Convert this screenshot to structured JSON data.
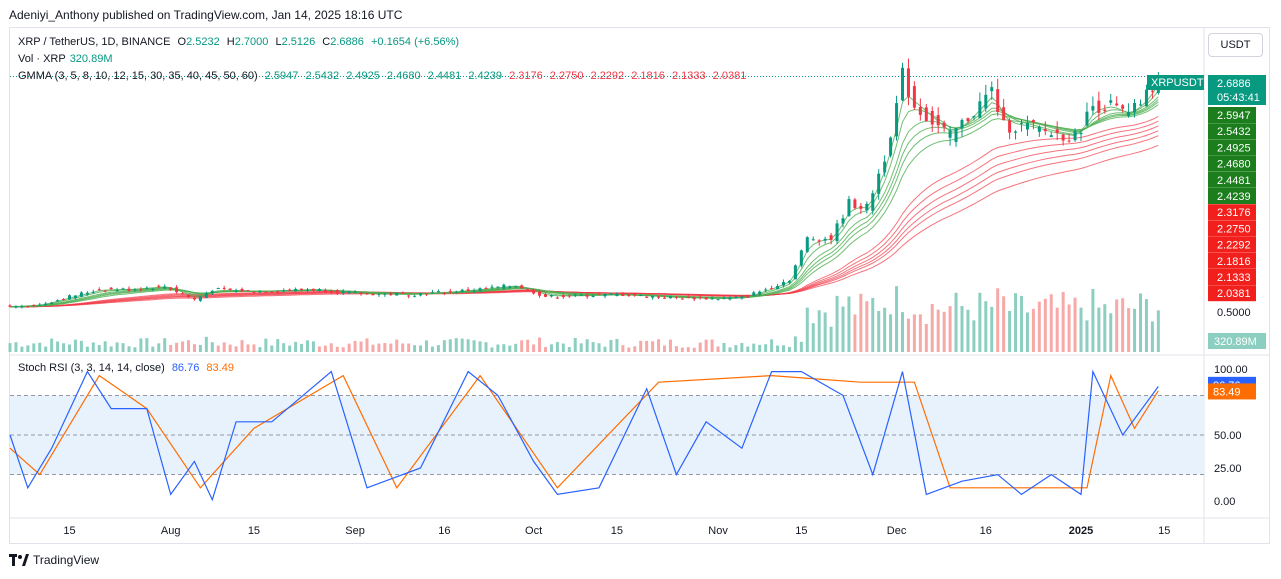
{
  "header": {
    "publisher": "Adeniyi_Anthony published on TradingView.com, Jan 14, 2025 18:16 UTC"
  },
  "legend": {
    "symbol": "XRP / TetherUS, 1D, BINANCE",
    "open_label": "O",
    "open": "2.5232",
    "high_label": "H",
    "high": "2.7000",
    "low_label": "L",
    "low": "2.5126",
    "close_label": "C",
    "close": "2.6886",
    "change": "+0.1654 (+6.56%)",
    "vol_label": "Vol · XRP",
    "vol_value": "320.89M",
    "gmma_label": "GMMA (3, 5, 8, 10, 12, 15, 30, 35, 40, 45, 50, 60)",
    "gmma_values_short": [
      "2.5947",
      "2.5432",
      "2.4925",
      "2.4680",
      "2.4481",
      "2.4239"
    ],
    "gmma_values_long": [
      "2.3176",
      "2.2750",
      "2.2292",
      "2.1816",
      "2.1333",
      "2.0381"
    ]
  },
  "stoch": {
    "label": "Stoch RSI (3, 3, 14, 14, close)",
    "k": "86.76",
    "d": "83.49"
  },
  "currency_button": "USDT",
  "footer": {
    "brand": "TradingView"
  },
  "colors": {
    "up": "#089981",
    "down": "#f23645",
    "short_ma": "#4caf50",
    "long_ma": "#f23645",
    "k_line": "#2962ff",
    "d_line": "#ff6d00",
    "band": "#e8f2fd",
    "vol_up": "#8ccfc1",
    "vol_down": "#f7a9a7"
  },
  "chart_data": {
    "type": "line",
    "title": "XRP / TetherUS, 1D, BINANCE",
    "price_axis": {
      "ticks": [
        "0.5000"
      ],
      "current_tag": {
        "symbol": "XRPUSDT",
        "price": "2.6886",
        "countdown": "05:43:41"
      },
      "volume_tag": "320.89M"
    },
    "x_ticks": [
      {
        "label": "15",
        "date": "2024-07-15"
      },
      {
        "label": "Aug",
        "date": "2024-08-01"
      },
      {
        "label": "15",
        "date": "2024-08-15"
      },
      {
        "label": "Sep",
        "date": "2024-09-01"
      },
      {
        "label": "16",
        "date": "2024-09-16"
      },
      {
        "label": "Oct",
        "date": "2024-10-01"
      },
      {
        "label": "15",
        "date": "2024-10-15"
      },
      {
        "label": "Nov",
        "date": "2024-11-01"
      },
      {
        "label": "15",
        "date": "2024-11-15"
      },
      {
        "label": "Dec",
        "date": "2024-12-01"
      },
      {
        "label": "16",
        "date": "2024-12-16"
      },
      {
        "label": "2025",
        "date": "2025-01-01"
      },
      {
        "label": "15",
        "date": "2025-01-15"
      }
    ],
    "close_series": {
      "name": "XRP / TetherUS",
      "points": [
        [
          "2024-07-05",
          0.43
        ],
        [
          "2024-07-10",
          0.45
        ],
        [
          "2024-07-15",
          0.53
        ],
        [
          "2024-07-20",
          0.6
        ],
        [
          "2024-07-25",
          0.6
        ],
        [
          "2024-07-31",
          0.63
        ],
        [
          "2024-08-05",
          0.5
        ],
        [
          "2024-08-08",
          0.6
        ],
        [
          "2024-08-15",
          0.58
        ],
        [
          "2024-08-25",
          0.6
        ],
        [
          "2024-09-01",
          0.56
        ],
        [
          "2024-09-10",
          0.55
        ],
        [
          "2024-09-20",
          0.59
        ],
        [
          "2024-09-28",
          0.64
        ],
        [
          "2024-10-03",
          0.53
        ],
        [
          "2024-10-15",
          0.55
        ],
        [
          "2024-10-25",
          0.52
        ],
        [
          "2024-11-01",
          0.51
        ],
        [
          "2024-11-05",
          0.52
        ],
        [
          "2024-11-10",
          0.62
        ],
        [
          "2024-11-13",
          0.7
        ],
        [
          "2024-11-16",
          1.1
        ],
        [
          "2024-11-20",
          1.1
        ],
        [
          "2024-11-23",
          1.45
        ],
        [
          "2024-11-26",
          1.4
        ],
        [
          "2024-11-29",
          1.9
        ],
        [
          "2024-12-01",
          2.4
        ],
        [
          "2024-12-02",
          2.7
        ],
        [
          "2024-12-04",
          2.4
        ],
        [
          "2024-12-06",
          2.3
        ],
        [
          "2024-12-10",
          2.1
        ],
        [
          "2024-12-14",
          2.35
        ],
        [
          "2024-12-17",
          2.55
        ],
        [
          "2024-12-19",
          2.2
        ],
        [
          "2024-12-23",
          2.2
        ],
        [
          "2024-12-27",
          2.13
        ],
        [
          "2024-12-31",
          2.1
        ],
        [
          "2025-01-03",
          2.4
        ],
        [
          "2025-01-06",
          2.4
        ],
        [
          "2025-01-09",
          2.3
        ],
        [
          "2025-01-12",
          2.5
        ],
        [
          "2025-01-14",
          2.6886
        ]
      ]
    },
    "gmma_current": {
      "short": [
        2.5947,
        2.5432,
        2.4925,
        2.468,
        2.4481,
        2.4239
      ],
      "long": [
        2.3176,
        2.275,
        2.2292,
        2.1816,
        2.1333,
        2.0381
      ]
    },
    "stoch_rsi": {
      "ylim": [
        0,
        100
      ],
      "ticks": [
        "100.00",
        "50.00",
        "25.00",
        "0.00"
      ],
      "bands": [
        20,
        50,
        80
      ],
      "k": [
        [
          "2024-07-05",
          50
        ],
        [
          "2024-07-08",
          10
        ],
        [
          "2024-07-12",
          40
        ],
        [
          "2024-07-18",
          98
        ],
        [
          "2024-07-22",
          70
        ],
        [
          "2024-07-28",
          70
        ],
        [
          "2024-08-01",
          5
        ],
        [
          "2024-08-05",
          30
        ],
        [
          "2024-08-08",
          1
        ],
        [
          "2024-08-12",
          60
        ],
        [
          "2024-08-18",
          60
        ],
        [
          "2024-08-28",
          98
        ],
        [
          "2024-09-03",
          10
        ],
        [
          "2024-09-12",
          25
        ],
        [
          "2024-09-20",
          98
        ],
        [
          "2024-09-25",
          80
        ],
        [
          "2024-10-01",
          30
        ],
        [
          "2024-10-05",
          5
        ],
        [
          "2024-10-12",
          10
        ],
        [
          "2024-10-20",
          85
        ],
        [
          "2024-10-25",
          20
        ],
        [
          "2024-10-30",
          60
        ],
        [
          "2024-11-05",
          40
        ],
        [
          "2024-11-10",
          98
        ],
        [
          "2024-11-15",
          98
        ],
        [
          "2024-11-22",
          80
        ],
        [
          "2024-11-27",
          20
        ],
        [
          "2024-12-02",
          98
        ],
        [
          "2024-12-06",
          5
        ],
        [
          "2024-12-12",
          15
        ],
        [
          "2024-12-18",
          20
        ],
        [
          "2024-12-22",
          5
        ],
        [
          "2024-12-27",
          20
        ],
        [
          "2025-01-01",
          5
        ],
        [
          "2025-01-03",
          98
        ],
        [
          "2025-01-08",
          50
        ],
        [
          "2025-01-14",
          86.76
        ]
      ],
      "d": [
        [
          "2024-07-05",
          40
        ],
        [
          "2024-07-10",
          20
        ],
        [
          "2024-07-20",
          95
        ],
        [
          "2024-07-28",
          70
        ],
        [
          "2024-08-06",
          10
        ],
        [
          "2024-08-15",
          55
        ],
        [
          "2024-08-30",
          95
        ],
        [
          "2024-09-08",
          10
        ],
        [
          "2024-09-22",
          95
        ],
        [
          "2024-10-05",
          10
        ],
        [
          "2024-10-22",
          90
        ],
        [
          "2024-11-10",
          95
        ],
        [
          "2024-11-25",
          90
        ],
        [
          "2024-12-04",
          90
        ],
        [
          "2024-12-10",
          10
        ],
        [
          "2024-12-25",
          10
        ],
        [
          "2025-01-02",
          10
        ],
        [
          "2025-01-06",
          95
        ],
        [
          "2025-01-10",
          55
        ],
        [
          "2025-01-14",
          83.49
        ]
      ]
    }
  }
}
